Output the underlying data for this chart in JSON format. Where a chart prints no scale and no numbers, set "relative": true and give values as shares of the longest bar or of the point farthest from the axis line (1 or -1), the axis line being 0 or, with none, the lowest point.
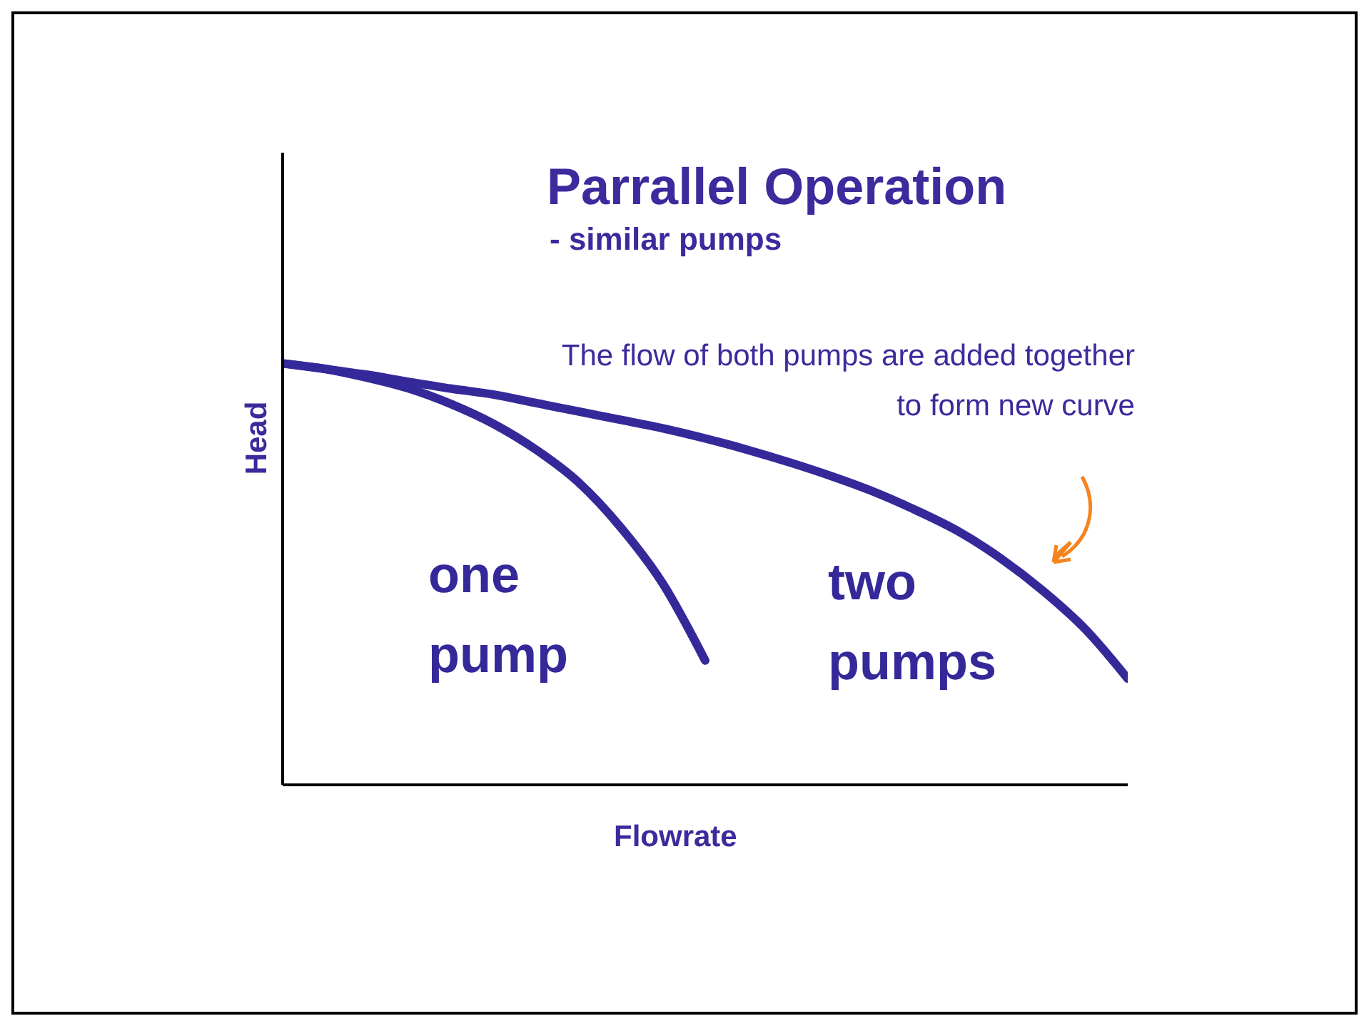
{
  "chart_data": {
    "type": "line",
    "title": "Parrallel Operation",
    "subtitle": "- similar pumps",
    "xlabel": "Flowrate",
    "ylabel": "Head",
    "relative": true,
    "legend": false,
    "annotations": [
      "The flow of both pumps are added together  to form new curve"
    ],
    "categories": [
      null,
      null,
      null,
      null,
      null,
      null,
      null,
      null,
      null,
      null,
      null,
      null,
      null,
      null,
      null,
      null,
      null,
      null,
      null,
      null,
      null
    ],
    "series": [
      {
        "name": "one pump",
        "color": "#35299a",
        "values": [
          1,
          0.987,
          0.966,
          0.94,
          0.903,
          0.856,
          0.795,
          0.718,
          0.611,
          0.477,
          0.295,
          null,
          null,
          null,
          null,
          null,
          null,
          null,
          null,
          null,
          null
        ]
      },
      {
        "name": "two pumps",
        "color": "#35299a",
        "values": [
          1,
          0.987,
          0.973,
          0.956,
          0.94,
          0.926,
          0.906,
          0.886,
          0.866,
          0.846,
          0.822,
          0.795,
          0.765,
          0.732,
          0.695,
          0.651,
          0.601,
          0.537,
          0.46,
          0.369,
          0.252
        ]
      }
    ]
  }
}
